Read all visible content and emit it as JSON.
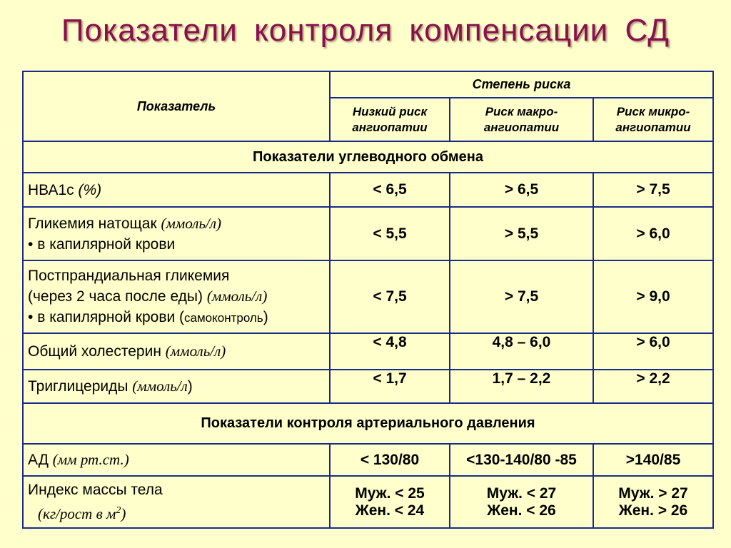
{
  "title": "Показатели  контроля  компенсации  СД",
  "table": {
    "header": {
      "indicator": "Показатель",
      "risk_degree": "Степень риска",
      "low_risk": "Низкий риск ангиопатии",
      "macro_risk": "Риск макро-ангиопатии",
      "micro_risk": "Риск микро-ангиопатии"
    },
    "sections": {
      "carb": "Показатели углеводного обмена",
      "bp": "Показатели контроля артериального давления"
    },
    "rows": {
      "hba1c": {
        "label": "НВА1с",
        "unit": "(%)",
        "values": [
          "< 6,5",
          "> 6,5",
          "> 7,5"
        ]
      },
      "fasting": {
        "label": "Гликемия натощак",
        "unit": "(ммоль/л)",
        "bullet": "в капилярной крови",
        "values": [
          "< 5,5",
          "> 5,5",
          "> 6,0"
        ]
      },
      "postprandial": {
        "label": "Постпрандиальная гликемия",
        "label2": "(через 2 часа после еды)",
        "unit": "(ммоль/л)",
        "bullet": "в капилярной крови (",
        "bullet_small": "самоконтроль",
        "bullet_end": ")",
        "values": [
          "< 7,5",
          "> 7,5",
          "> 9,0"
        ]
      },
      "cholesterol": {
        "label": "Общий холестерин",
        "unit": "(ммоль/л)",
        "values": [
          "< 4,8",
          "4,8 – 6,0",
          "> 6,0"
        ]
      },
      "triglycerides": {
        "label": "Триглицериды",
        "unit": "(ммоль/л",
        "unit_end": ")",
        "values": [
          "< 1,7",
          "1,7 – 2,2",
          "> 2,2"
        ]
      },
      "bp": {
        "label": "АД",
        "unit": "(мм рт.ст.)",
        "values": [
          "< 130/80",
          "<130-140/80 -85",
          ">140/85"
        ]
      },
      "bmi": {
        "label": "Индекс массы тела",
        "unit": "(кг/рост в м",
        "unit_sup": "2",
        "unit_end": ")",
        "values_male": [
          "Муж. < 25",
          "Муж. < 27",
          "Муж. > 27"
        ],
        "values_female": [
          "Жен. < 24",
          "Жен. < 26",
          "Жен. > 26"
        ]
      }
    }
  }
}
